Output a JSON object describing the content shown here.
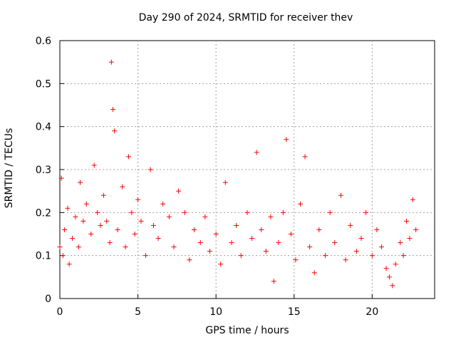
{
  "chart_data": {
    "type": "scatter",
    "title": "Day 290 of 2024, SRMTID for receiver thev",
    "xlabel": "GPS time / hours",
    "ylabel": "SRMTID / TECUs",
    "xlim": [
      0,
      24
    ],
    "ylim": [
      0,
      0.6
    ],
    "xticks": [
      0,
      5,
      10,
      15,
      20
    ],
    "yticks": [
      0,
      0.1,
      0.2,
      0.3,
      0.4,
      0.5,
      0.6
    ],
    "xtick_labels": [
      "0",
      "5",
      "10",
      "15",
      "20"
    ],
    "ytick_labels": [
      "0",
      "0.1",
      "0.2",
      "0.3",
      "0.4",
      "0.5",
      "0.6"
    ],
    "grid": true,
    "marker": "+",
    "color": "#ff0000",
    "series": [
      {
        "name": "SRMTID",
        "x": [
          0.0,
          0.1,
          0.2,
          0.3,
          0.5,
          0.6,
          0.8,
          1.0,
          1.2,
          1.3,
          1.5,
          1.7,
          2.0,
          2.2,
          2.4,
          2.6,
          2.8,
          3.0,
          3.2,
          3.3,
          3.4,
          3.5,
          3.7,
          4.0,
          4.2,
          4.4,
          4.6,
          4.8,
          5.0,
          5.2,
          5.5,
          5.8,
          6.0,
          6.3,
          6.6,
          7.0,
          7.3,
          7.6,
          8.0,
          8.3,
          8.6,
          9.0,
          9.3,
          9.6,
          10.0,
          10.3,
          10.6,
          11.0,
          11.3,
          11.6,
          12.0,
          12.3,
          12.6,
          12.9,
          13.2,
          13.5,
          13.7,
          14.0,
          14.3,
          14.5,
          14.8,
          15.1,
          15.4,
          15.7,
          16.0,
          16.3,
          16.6,
          17.0,
          17.3,
          17.6,
          18.0,
          18.3,
          18.6,
          19.0,
          19.3,
          19.6,
          20.0,
          20.3,
          20.6,
          20.9,
          21.1,
          21.3,
          21.5,
          21.8,
          22.0,
          22.2,
          22.4,
          22.6,
          22.8
        ],
        "y": [
          0.12,
          0.28,
          0.1,
          0.16,
          0.21,
          0.08,
          0.14,
          0.19,
          0.12,
          0.27,
          0.18,
          0.22,
          0.15,
          0.31,
          0.2,
          0.17,
          0.24,
          0.18,
          0.13,
          0.55,
          0.44,
          0.39,
          0.16,
          0.26,
          0.12,
          0.33,
          0.2,
          0.15,
          0.23,
          0.18,
          0.1,
          0.3,
          0.17,
          0.14,
          0.22,
          0.19,
          0.12,
          0.25,
          0.2,
          0.09,
          0.16,
          0.13,
          0.19,
          0.11,
          0.15,
          0.08,
          0.27,
          0.13,
          0.17,
          0.1,
          0.2,
          0.14,
          0.34,
          0.16,
          0.11,
          0.19,
          0.04,
          0.13,
          0.2,
          0.37,
          0.15,
          0.09,
          0.22,
          0.33,
          0.12,
          0.06,
          0.16,
          0.1,
          0.2,
          0.13,
          0.24,
          0.09,
          0.17,
          0.11,
          0.14,
          0.2,
          0.1,
          0.16,
          0.12,
          0.07,
          0.05,
          0.03,
          0.08,
          0.13,
          0.1,
          0.18,
          0.14,
          0.23,
          0.16
        ]
      }
    ]
  }
}
